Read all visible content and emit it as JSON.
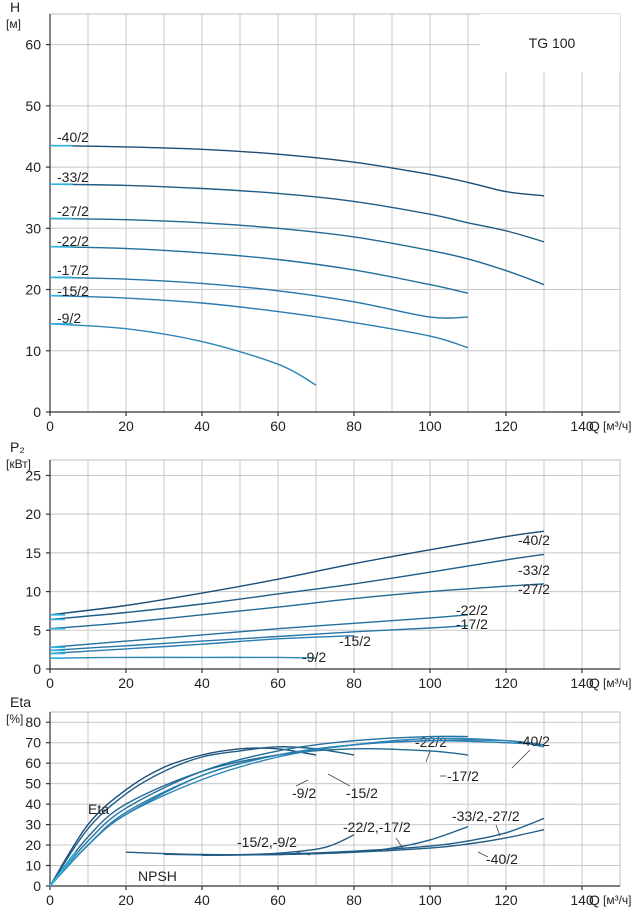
{
  "chart_data": [
    {
      "type": "line",
      "name": "head",
      "model_label": "TG 100",
      "ylabel": "H",
      "yunit": "[м]",
      "xlabel": "Q",
      "xunit": "[м³/ч]",
      "xlim": [
        0,
        150
      ],
      "ylim": [
        0,
        65
      ],
      "xticks": [
        0,
        20,
        40,
        60,
        80,
        100,
        120,
        140
      ],
      "yticks": [
        0,
        10,
        20,
        30,
        40,
        50,
        60
      ],
      "grid": true,
      "series": [
        {
          "name": "-40/2",
          "x": [
            0,
            20,
            40,
            60,
            80,
            100,
            110,
            120,
            130
          ],
          "y": [
            43.5,
            43.3,
            42.9,
            42.1,
            40.8,
            38.8,
            37.5,
            36.0,
            35.3
          ]
        },
        {
          "name": "-33/2",
          "x": [
            0,
            20,
            40,
            60,
            80,
            100,
            110,
            120,
            130
          ],
          "y": [
            37.2,
            37.0,
            36.5,
            35.7,
            34.4,
            32.3,
            30.9,
            29.6,
            27.8
          ]
        },
        {
          "name": "-27/2",
          "x": [
            0,
            20,
            40,
            60,
            80,
            100,
            110,
            120,
            130
          ],
          "y": [
            31.6,
            31.4,
            30.9,
            30.0,
            28.6,
            26.4,
            25.0,
            23.1,
            20.8
          ]
        },
        {
          "name": "-22/2",
          "x": [
            0,
            20,
            40,
            60,
            80,
            100,
            110
          ],
          "y": [
            27.0,
            26.7,
            26.0,
            24.9,
            23.2,
            20.8,
            19.4
          ]
        },
        {
          "name": "-17/2",
          "x": [
            0,
            20,
            40,
            60,
            80,
            100,
            110
          ],
          "y": [
            22.0,
            21.7,
            21.0,
            19.8,
            18.0,
            15.5,
            15.5
          ]
        },
        {
          "name": "-15/2",
          "x": [
            0,
            20,
            40,
            60,
            80,
            100,
            110
          ],
          "y": [
            19.0,
            18.6,
            17.8,
            16.4,
            14.6,
            12.4,
            10.5
          ]
        },
        {
          "name": "-9/2",
          "x": [
            0,
            20,
            40,
            60,
            70
          ],
          "y": [
            14.4,
            13.6,
            11.5,
            7.8,
            4.4
          ]
        }
      ]
    },
    {
      "type": "line",
      "name": "power",
      "ylabel": "P₂",
      "yunit": "[кВт]",
      "xlabel": "Q",
      "xunit": "[м³/ч]",
      "xlim": [
        0,
        150
      ],
      "ylim": [
        0,
        27
      ],
      "xticks": [
        0,
        20,
        40,
        60,
        80,
        100,
        120,
        140
      ],
      "yticks": [
        0,
        5,
        10,
        15,
        20,
        25
      ],
      "grid": true,
      "series": [
        {
          "name": "-40/2",
          "x": [
            0,
            20,
            40,
            60,
            80,
            100,
            120,
            130
          ],
          "y": [
            7.0,
            8.2,
            9.8,
            11.6,
            13.6,
            15.4,
            17.1,
            17.8
          ]
        },
        {
          "name": "-33/2",
          "x": [
            0,
            20,
            40,
            60,
            80,
            100,
            120,
            130
          ],
          "y": [
            6.4,
            7.3,
            8.4,
            9.7,
            11.0,
            12.5,
            14.1,
            14.8
          ]
        },
        {
          "name": "-27/2",
          "x": [
            0,
            20,
            40,
            60,
            80,
            100,
            120,
            130
          ],
          "y": [
            5.2,
            6.0,
            7.0,
            8.0,
            9.1,
            10.0,
            10.7,
            11.0
          ]
        },
        {
          "name": "-22/2",
          "x": [
            0,
            20,
            40,
            60,
            80,
            100,
            110
          ],
          "y": [
            2.8,
            3.6,
            4.4,
            5.2,
            5.9,
            6.6,
            7.0
          ]
        },
        {
          "name": "-17/2",
          "x": [
            0,
            20,
            40,
            60,
            80,
            100,
            110
          ],
          "y": [
            2.4,
            3.0,
            3.6,
            4.2,
            4.8,
            5.3,
            5.6
          ]
        },
        {
          "name": "-15/2",
          "x": [
            0,
            20,
            40,
            60,
            80
          ],
          "y": [
            2.0,
            2.6,
            3.2,
            3.9,
            4.3
          ]
        },
        {
          "name": "-9/2",
          "x": [
            0,
            20,
            40,
            60,
            70
          ],
          "y": [
            1.4,
            1.5,
            1.5,
            1.5,
            1.4
          ]
        }
      ]
    },
    {
      "type": "line",
      "name": "efficiency-npsh",
      "ylabel": "Eta",
      "yunit": "[%]",
      "xlabel": "Q",
      "xunit": "[м³/ч]",
      "xlim": [
        0,
        150
      ],
      "ylim": [
        0,
        85
      ],
      "xticks": [
        0,
        20,
        40,
        60,
        80,
        100,
        120,
        140
      ],
      "yticks": [
        0,
        10,
        20,
        30,
        40,
        50,
        60,
        70,
        80
      ],
      "grid": true,
      "curve_group_labels": [
        "Eta",
        "NPSH"
      ],
      "series": [
        {
          "name": "-9/2",
          "group": "Eta",
          "x": [
            0,
            10,
            20,
            30,
            40,
            50,
            60,
            70
          ],
          "y": [
            0,
            30,
            47,
            58,
            64,
            67,
            67,
            64
          ]
        },
        {
          "name": "-15/2",
          "group": "Eta",
          "x": [
            0,
            10,
            20,
            30,
            40,
            50,
            60,
            70,
            80
          ],
          "y": [
            0,
            28,
            45,
            56,
            63,
            66,
            68,
            67,
            64
          ]
        },
        {
          "name": "-17/2",
          "group": "Eta",
          "x": [
            0,
            10,
            20,
            40,
            60,
            80,
            100,
            110
          ],
          "y": [
            0,
            24,
            40,
            56,
            64,
            67,
            66,
            64
          ]
        },
        {
          "name": "-22/2",
          "group": "Eta",
          "x": [
            0,
            10,
            20,
            40,
            60,
            80,
            100,
            110
          ],
          "y": [
            0,
            22,
            38,
            56,
            66,
            71,
            73,
            73
          ]
        },
        {
          "name": "-27/2",
          "group": "Eta",
          "x": [
            0,
            10,
            20,
            40,
            60,
            80,
            100,
            120,
            130
          ],
          "y": [
            0,
            20,
            35,
            54,
            64,
            69,
            71,
            71,
            69
          ]
        },
        {
          "name": "-33/2",
          "group": "Eta",
          "x": [
            0,
            10,
            20,
            40,
            60,
            80,
            100,
            120,
            130
          ],
          "y": [
            0,
            20,
            36,
            54,
            64,
            69,
            71,
            70,
            69
          ]
        },
        {
          "name": "-40/2",
          "group": "Eta",
          "x": [
            0,
            10,
            20,
            40,
            60,
            80,
            100,
            120,
            130
          ],
          "y": [
            0,
            20,
            35,
            52,
            63,
            69,
            72,
            71,
            68
          ]
        },
        {
          "name": "-15/2,-9/2",
          "group": "NPSH",
          "x": [
            30,
            40,
            50,
            60,
            70,
            75,
            80
          ],
          "y": [
            15.5,
            15.2,
            15.3,
            16.0,
            18.0,
            20.5,
            25.0
          ]
        },
        {
          "name": "-22/2,-17/2",
          "group": "NPSH",
          "x": [
            20,
            40,
            60,
            80,
            90,
            100,
            110
          ],
          "y": [
            16.5,
            15.4,
            15.4,
            16.5,
            18.5,
            22.5,
            29.0
          ]
        },
        {
          "name": "-33/2,-27/2",
          "group": "NPSH",
          "x": [
            40,
            60,
            80,
            100,
            110,
            120,
            130
          ],
          "y": [
            15.0,
            15.6,
            17.0,
            19.5,
            22.0,
            26.0,
            33.0
          ]
        },
        {
          "name": "-40/2",
          "group": "NPSH",
          "x": [
            40,
            60,
            80,
            100,
            110,
            120,
            130
          ],
          "y": [
            15.0,
            15.4,
            16.5,
            18.5,
            20.5,
            23.5,
            27.5
          ]
        }
      ]
    }
  ]
}
